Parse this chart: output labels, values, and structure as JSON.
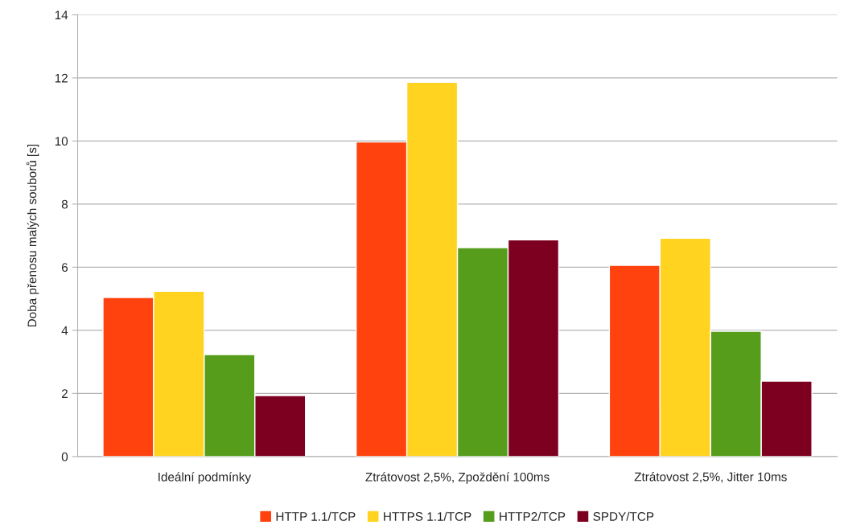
{
  "chart_data": {
    "type": "bar",
    "ylabel": "Doba přenosu malých souborů [s]",
    "categories": [
      "Ideální podmínky",
      "Ztrátovost 2,5%, Zpoždění 100ms",
      "Ztrátovost 2,5%, Jitter 10ms"
    ],
    "series": [
      {
        "name": "HTTP 1.1/TCP",
        "color": "#ff420e",
        "values": [
          5.04,
          9.97,
          6.06
        ]
      },
      {
        "name": "HTTPS 1.1/TCP",
        "color": "#ffd320",
        "values": [
          5.24,
          11.86,
          6.92
        ]
      },
      {
        "name": "HTTP2/TCP",
        "color": "#579d1c",
        "values": [
          3.23,
          6.62,
          3.97
        ]
      },
      {
        "name": "SPDY/TCP",
        "color": "#7e0021",
        "values": [
          1.93,
          6.87,
          2.39
        ]
      }
    ],
    "ylim": [
      0,
      14
    ],
    "yticks": [
      0,
      2,
      4,
      6,
      8,
      10,
      12,
      14
    ],
    "grid": "y",
    "legend": "bottom"
  }
}
